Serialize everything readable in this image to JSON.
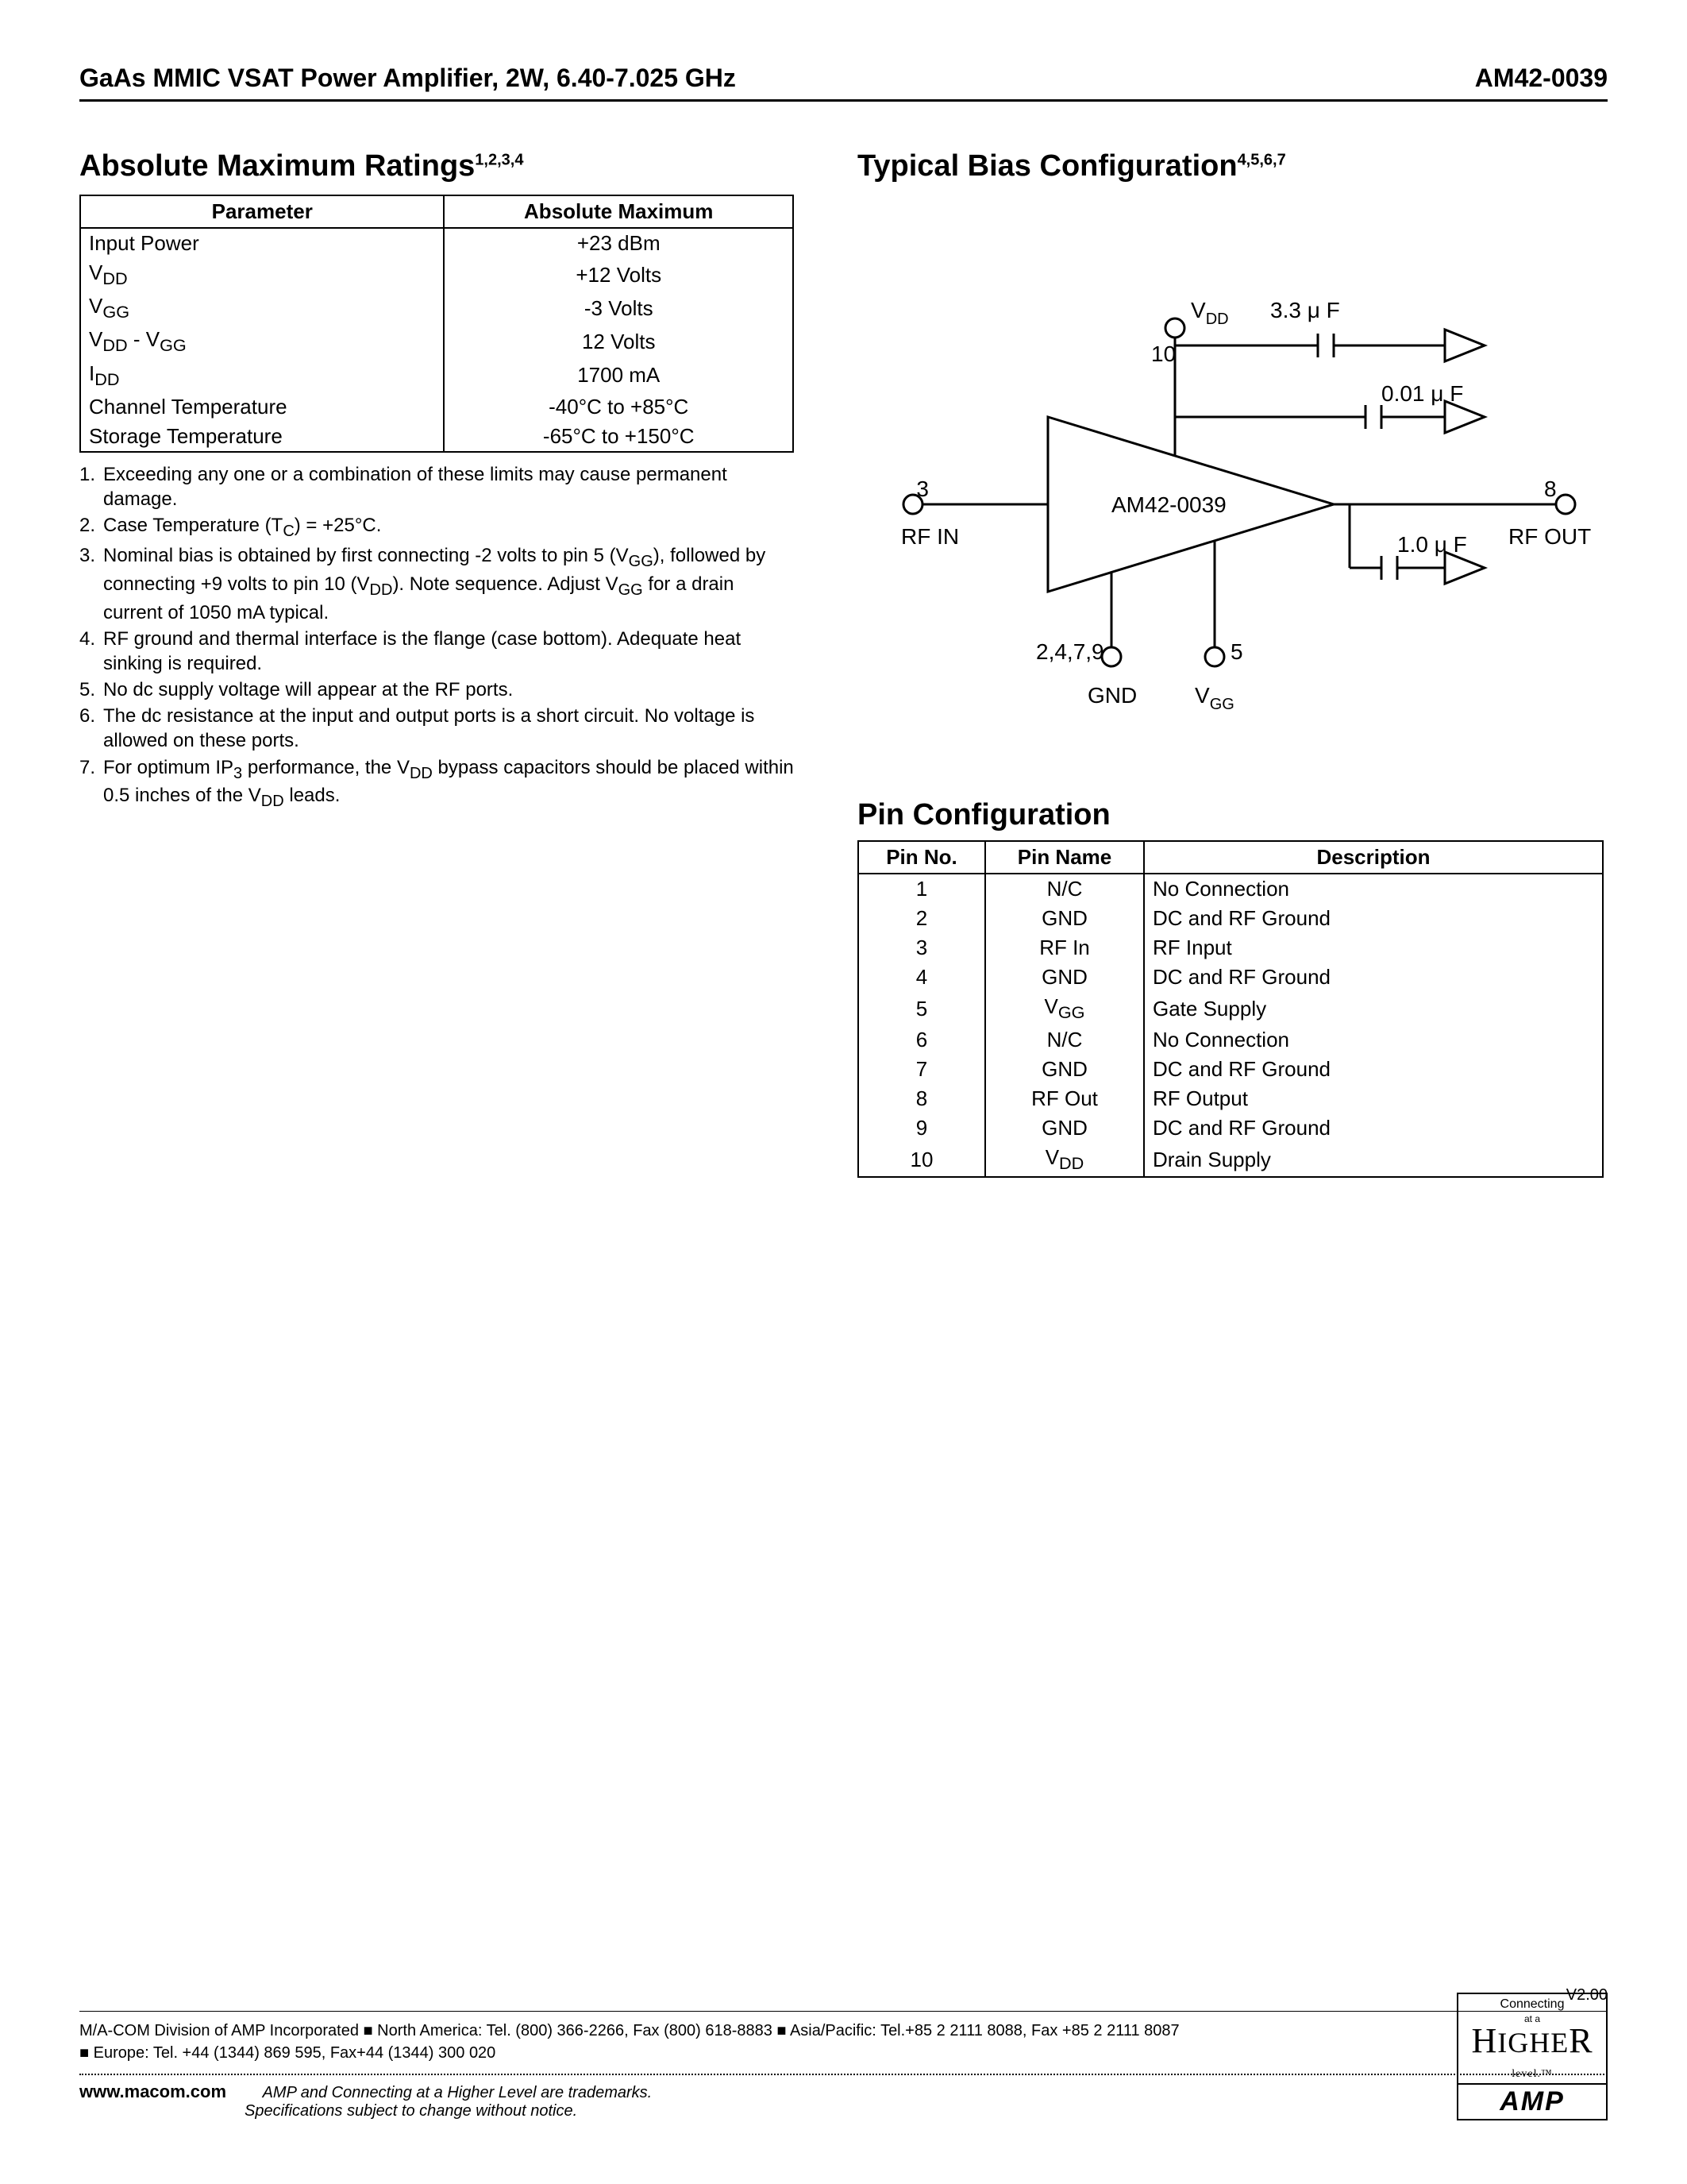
{
  "header": {
    "title": "GaAs MMIC VSAT Power Amplifier, 2W, 6.40-7.025 GHz",
    "part": "AM42-0039"
  },
  "ratings": {
    "title": "Absolute Maximum Ratings",
    "title_sup": "1,2,3,4",
    "col1": "Parameter",
    "col2": "Absolute Maximum",
    "rows": [
      {
        "p": "Input Power",
        "v": "+23 dBm"
      },
      {
        "p": "V<sub>DD</sub>",
        "v": "+12 Volts"
      },
      {
        "p": "V<sub>GG</sub>",
        "v": "-3 Volts"
      },
      {
        "p": "V<sub>DD</sub> - V<sub>GG</sub>",
        "v": "12 Volts"
      },
      {
        "p": "I<sub>DD</sub>",
        "v": "1700 mA"
      },
      {
        "p": "Channel Temperature",
        "v": "-40°C to +85°C"
      },
      {
        "p": "Storage Temperature",
        "v": "-65°C to +150°C"
      }
    ]
  },
  "notes": [
    {
      "n": "1.",
      "t": "Exceeding any one or a combination of these limits may cause permanent damage."
    },
    {
      "n": "2.",
      "t": "Case Temperature (T<sub>C</sub>) = +25°C."
    },
    {
      "n": "3.",
      "t": "Nominal bias is obtained by first connecting -2 volts to pin 5 (V<sub>GG</sub>), followed by connecting +9 volts to pin 10 (V<sub>DD</sub>). Note sequence. Adjust V<sub>GG</sub> for a drain current of 1050 mA typical."
    },
    {
      "n": "4.",
      "t": "RF ground and thermal interface is the flange (case bottom). Adequate heat sinking is required."
    },
    {
      "n": "5.",
      "t": "No dc supply voltage will appear at the RF ports."
    },
    {
      "n": "6.",
      "t": "The dc resistance at the input and output ports is a short circuit. No voltage is allowed on these ports."
    },
    {
      "n": "7.",
      "t": "For optimum IP<sub>3</sub> performance, the V<sub>DD</sub> bypass capacitors should be placed within 0.5 inches of the V<sub>DD</sub> leads."
    }
  ],
  "bias": {
    "title": "Typical Bias Configuration",
    "title_sup": "4,5,6,7",
    "chip": "AM42-0039",
    "vdd": "V",
    "vdd_sub": "DD",
    "vgg": "V",
    "vgg_sub": "GG",
    "cap1": "3.3 μ F",
    "cap2": "0.01 μ F",
    "cap3": "1.0 μ F",
    "pin10": "10",
    "pin3": "3",
    "pin8": "8",
    "pin5": "5",
    "pins_gnd": "2,4,7,9",
    "rfin": "RF IN",
    "rfout": "RF OUT",
    "gnd": "GND"
  },
  "pins": {
    "title": "Pin Configuration",
    "col1": "Pin No.",
    "col2": "Pin Name",
    "col3": "Description",
    "rows": [
      {
        "no": "1",
        "name": "N/C",
        "desc": "No Connection"
      },
      {
        "no": "2",
        "name": "GND",
        "desc": "DC and RF Ground"
      },
      {
        "no": "3",
        "name": "RF In",
        "desc": "RF Input"
      },
      {
        "no": "4",
        "name": "GND",
        "desc": "DC and RF Ground"
      },
      {
        "no": "5",
        "name": "V<sub>GG</sub>",
        "desc": "Gate Supply"
      },
      {
        "no": "6",
        "name": "N/C",
        "desc": "No Connection"
      },
      {
        "no": "7",
        "name": "GND",
        "desc": "DC and RF Ground"
      },
      {
        "no": "8",
        "name": "RF Out",
        "desc": "RF Output"
      },
      {
        "no": "9",
        "name": "GND",
        "desc": "DC and RF Ground"
      },
      {
        "no": "10",
        "name": "V<sub>DD</sub>",
        "desc": "Drain Supply"
      }
    ]
  },
  "footer": {
    "version": "V2.00",
    "line1": "M/A-COM Division of AMP Incorporated ■ North America: Tel. (800) 366-2266, Fax (800) 618-8883 ■ Asia/Pacific: Tel.+85 2 2111 8088, Fax +85 2 2111 8087",
    "line2": "■ Europe: Tel. +44 (1344) 869 595, Fax+44 (1344) 300 020",
    "site": "www.macom.com",
    "tm1": "AMP and Connecting at a Higher Level are trademarks.",
    "tm2": "Specifications subject to change without notice.",
    "logo_connecting": "Connecting at a",
    "logo_higher": "HIGHER",
    "logo_level": "level.",
    "logo_amp": "AMP"
  },
  "style": {
    "text_color": "#000000",
    "bg_color": "#ffffff",
    "border_color": "#000000",
    "line_width": 3
  }
}
